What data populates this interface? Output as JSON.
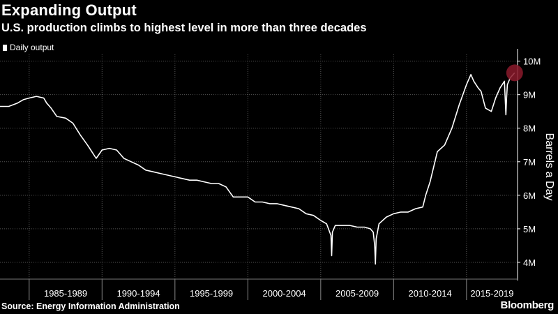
{
  "title": "Expanding Output",
  "subtitle": "U.S. production climbs to highest level in more than three decades",
  "source": "Source: Energy Information Administration",
  "brand": "Bloomberg",
  "colors": {
    "background": "#000000",
    "line": "#ffffff",
    "highlight": "#8b1a2b",
    "grid": "#555555"
  },
  "chart_data": {
    "type": "line",
    "ylabel": "Barrels a Day",
    "legend": [
      "Daily output"
    ],
    "legend_position": "top-left",
    "grid": true,
    "y_axis_side": "right",
    "xlim": [
      1983.0,
      2018.5
    ],
    "ylim": [
      3500000,
      10200000
    ],
    "y_ticks": [
      4000000,
      5000000,
      6000000,
      7000000,
      8000000,
      9000000,
      10000000
    ],
    "y_tick_labels": [
      "4M",
      "5M",
      "6M",
      "7M",
      "8M",
      "9M",
      "10M"
    ],
    "x_bands": [
      {
        "label": "1985-1989",
        "start": 1985,
        "end": 1990
      },
      {
        "label": "1990-1994",
        "start": 1990,
        "end": 1995
      },
      {
        "label": "1995-1999",
        "start": 1995,
        "end": 2000
      },
      {
        "label": "2000-2004",
        "start": 2000,
        "end": 2005
      },
      {
        "label": "2005-2009",
        "start": 2005,
        "end": 2010
      },
      {
        "label": "2010-2014",
        "start": 2010,
        "end": 2015
      },
      {
        "label": "2015-2019",
        "start": 2015,
        "end": 2020
      }
    ],
    "series": [
      {
        "name": "Daily output",
        "x": [
          1983.0,
          1983.6,
          1984.2,
          1984.6,
          1985.0,
          1985.5,
          1986.0,
          1986.2,
          1986.5,
          1986.9,
          1987.5,
          1988.0,
          1988.5,
          1989.0,
          1989.3,
          1989.6,
          1990.0,
          1990.5,
          1991.0,
          1991.5,
          1992.0,
          1992.5,
          1993.0,
          1993.5,
          1994.0,
          1995.0,
          1996.0,
          1996.5,
          1997.0,
          1997.5,
          1998.0,
          1998.5,
          1999.0,
          1999.5,
          2000.0,
          2000.5,
          2001.0,
          2001.5,
          2002.0,
          2002.5,
          2003.0,
          2003.5,
          2004.0,
          2004.5,
          2005.0,
          2005.4,
          2005.7,
          2005.75,
          2005.8,
          2006.0,
          2006.5,
          2007.0,
          2007.5,
          2008.0,
          2008.4,
          2008.6,
          2008.7,
          2008.75,
          2008.8,
          2009.0,
          2009.5,
          2010.0,
          2010.5,
          2011.0,
          2011.5,
          2012.0,
          2012.2,
          2012.5,
          2013.0,
          2013.5,
          2014.0,
          2014.5,
          2015.0,
          2015.3,
          2015.5,
          2015.8,
          2016.0,
          2016.3,
          2016.7,
          2017.0,
          2017.3,
          2017.6,
          2017.7,
          2017.75,
          2017.8,
          2018.0,
          2018.3
        ],
        "values": [
          8650000,
          8650000,
          8750000,
          8850000,
          8900000,
          8950000,
          8900000,
          8750000,
          8600000,
          8350000,
          8300000,
          8150000,
          7800000,
          7500000,
          7300000,
          7100000,
          7350000,
          7400000,
          7350000,
          7100000,
          7000000,
          6900000,
          6750000,
          6700000,
          6650000,
          6550000,
          6450000,
          6450000,
          6400000,
          6350000,
          6350000,
          6250000,
          5950000,
          5950000,
          5950000,
          5800000,
          5800000,
          5750000,
          5750000,
          5700000,
          5650000,
          5600000,
          5450000,
          5400000,
          5250000,
          5150000,
          4800000,
          4200000,
          4900000,
          5100000,
          5100000,
          5100000,
          5050000,
          5050000,
          5000000,
          4900000,
          4500000,
          3950000,
          4700000,
          5150000,
          5350000,
          5450000,
          5500000,
          5500000,
          5600000,
          5650000,
          6000000,
          6400000,
          7300000,
          7500000,
          8000000,
          8700000,
          9300000,
          9600000,
          9400000,
          9200000,
          9100000,
          8600000,
          8500000,
          8900000,
          9200000,
          9400000,
          8400000,
          8900000,
          9300000,
          9500000,
          9650000
        ]
      }
    ],
    "highlight_point": {
      "x": 2018.3,
      "y": 9650000
    }
  }
}
